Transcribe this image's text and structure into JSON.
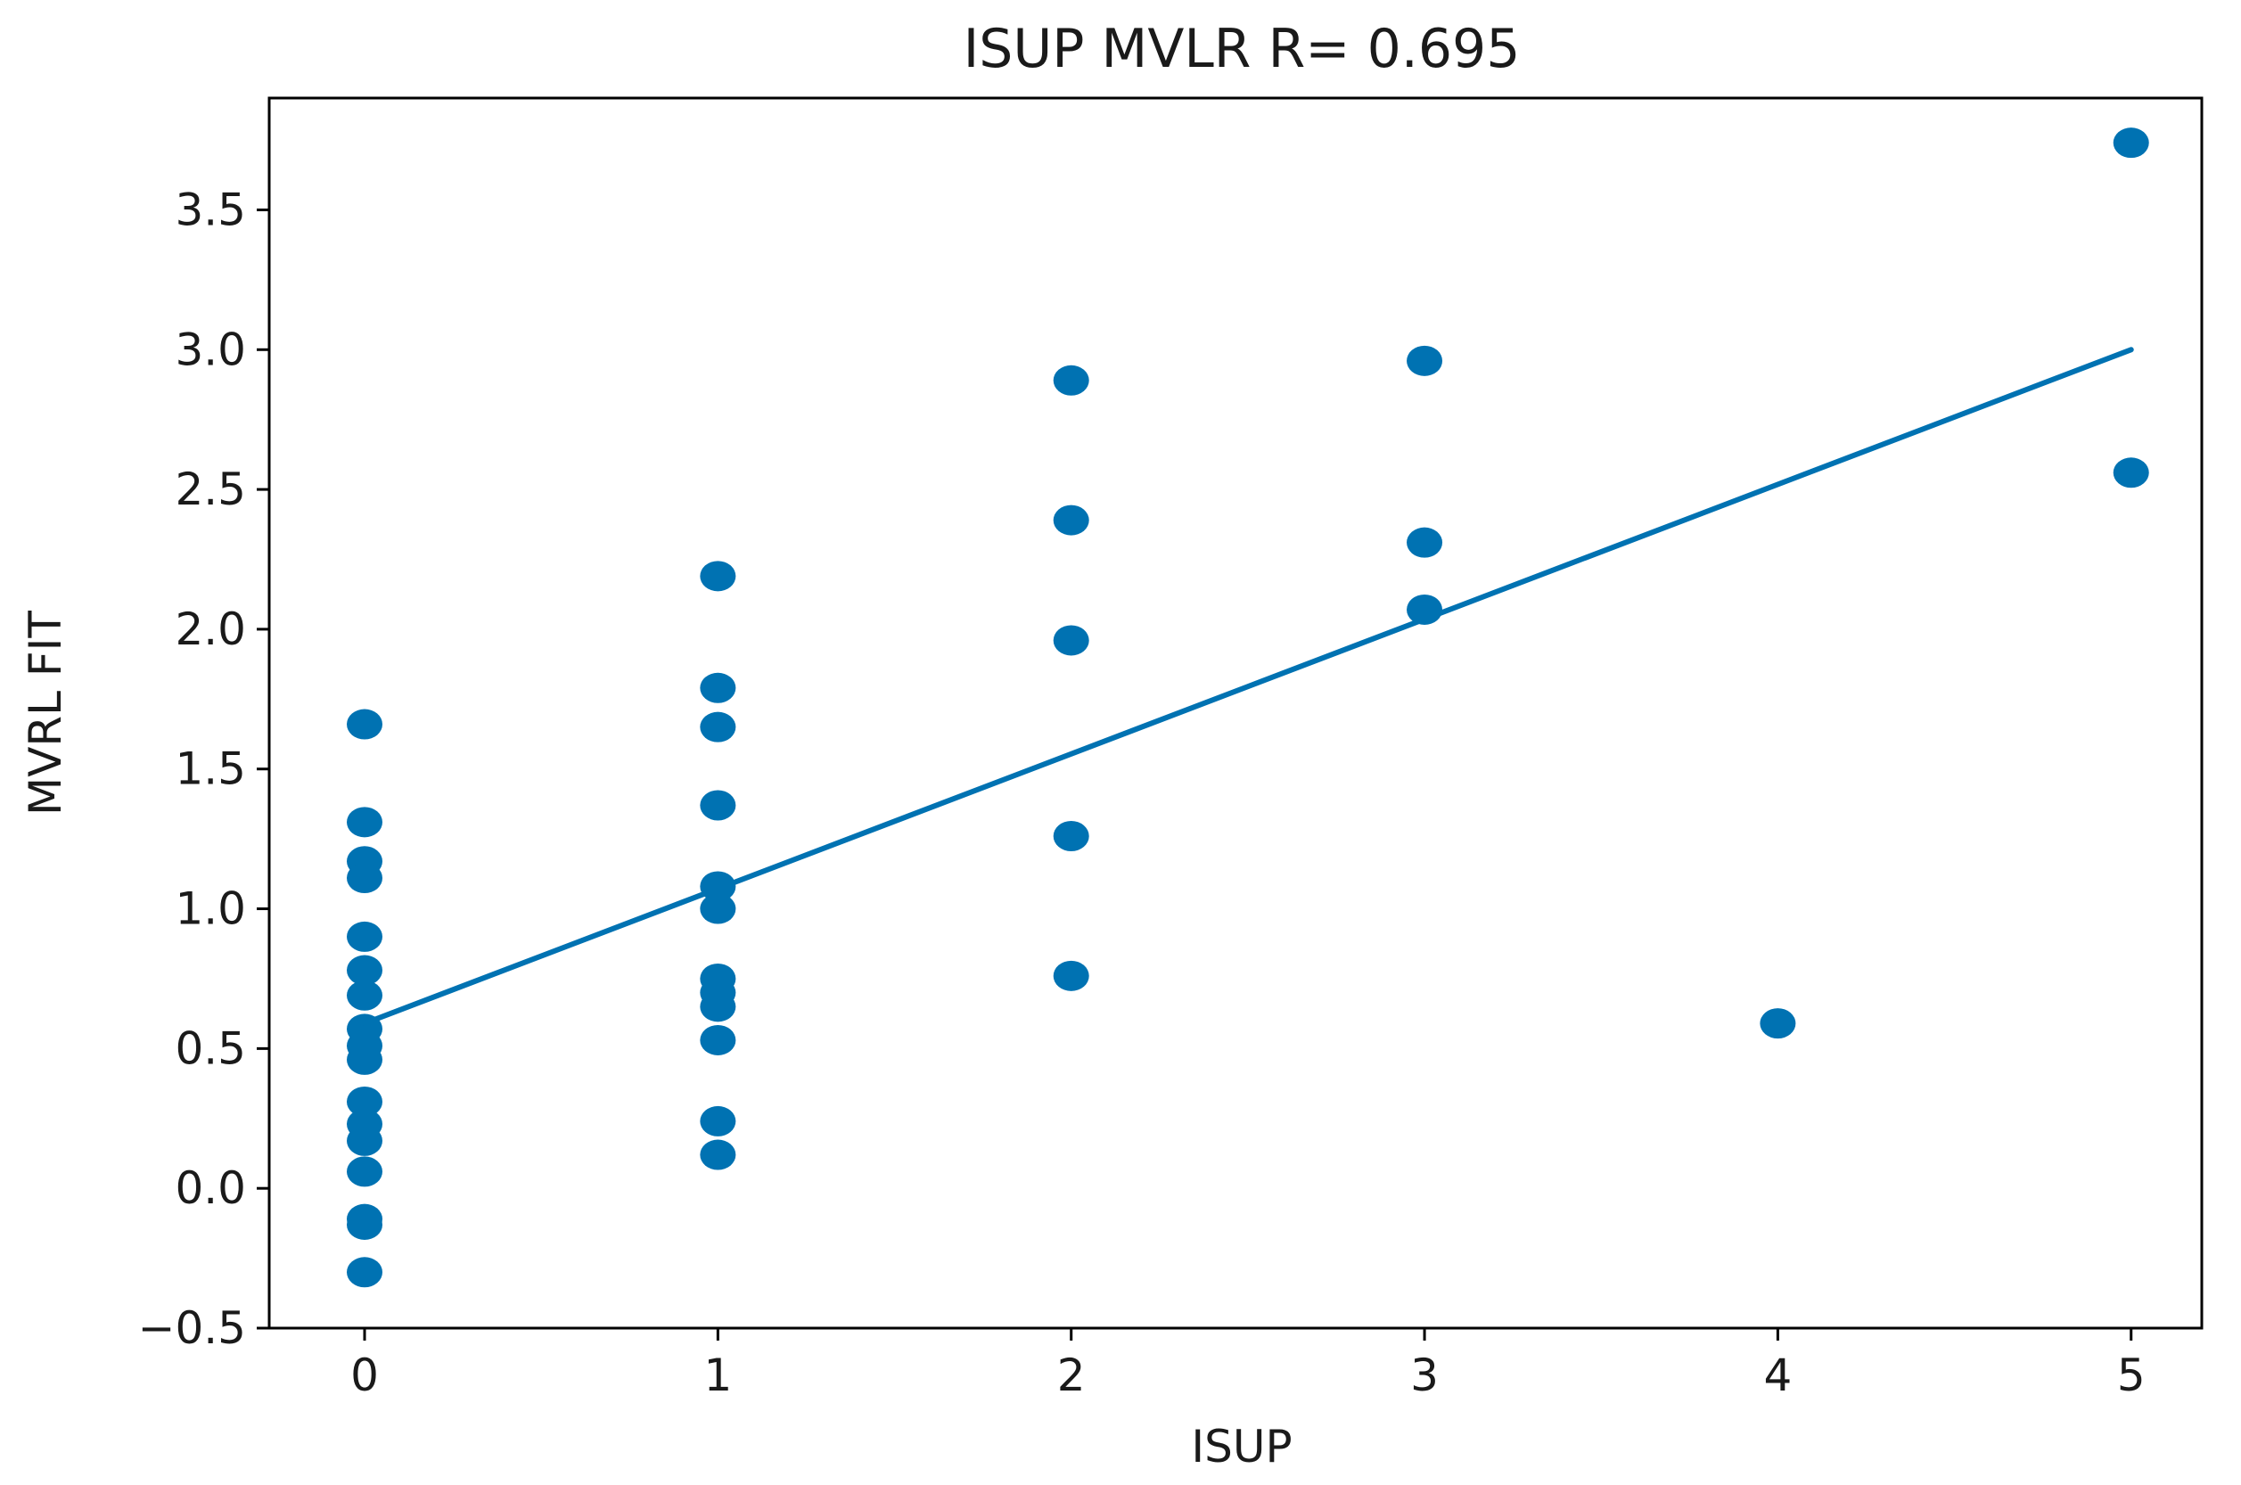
{
  "chart_data": {
    "type": "scatter",
    "title": "ISUP MVLR  R= 0.695",
    "xlabel": "ISUP",
    "ylabel": "MVRL FIT",
    "xlim": [
      -0.27,
      5.2
    ],
    "ylim": [
      -0.5,
      3.9
    ],
    "x_ticks": [
      0,
      1,
      2,
      3,
      4,
      5
    ],
    "x_tick_labels": [
      "0",
      "1",
      "2",
      "3",
      "4",
      "5"
    ],
    "y_ticks": [
      -0.5,
      0.0,
      0.5,
      1.0,
      1.5,
      2.0,
      2.5,
      3.0,
      3.5
    ],
    "y_tick_labels": [
      "−0.5",
      "0.0",
      "0.5",
      "1.0",
      "1.5",
      "2.0",
      "2.5",
      "3.0",
      "3.5"
    ],
    "grid": false,
    "legend": "none",
    "color": "#0072B2",
    "series": [
      {
        "kind": "scatter",
        "points": [
          {
            "x": 0,
            "y": 1.66
          },
          {
            "x": 0,
            "y": 1.31
          },
          {
            "x": 0,
            "y": 1.17
          },
          {
            "x": 0,
            "y": 1.11
          },
          {
            "x": 0,
            "y": 0.9
          },
          {
            "x": 0,
            "y": 0.78
          },
          {
            "x": 0,
            "y": 0.69
          },
          {
            "x": 0,
            "y": 0.57
          },
          {
            "x": 0,
            "y": 0.51
          },
          {
            "x": 0,
            "y": 0.46
          },
          {
            "x": 0,
            "y": 0.31
          },
          {
            "x": 0,
            "y": 0.23
          },
          {
            "x": 0,
            "y": 0.17
          },
          {
            "x": 0,
            "y": 0.06
          },
          {
            "x": 0,
            "y": -0.11
          },
          {
            "x": 0,
            "y": -0.13
          },
          {
            "x": 0,
            "y": -0.3
          },
          {
            "x": 1,
            "y": 2.19
          },
          {
            "x": 1,
            "y": 1.79
          },
          {
            "x": 1,
            "y": 1.65
          },
          {
            "x": 1,
            "y": 1.37
          },
          {
            "x": 1,
            "y": 1.08
          },
          {
            "x": 1,
            "y": 1.0
          },
          {
            "x": 1,
            "y": 0.75
          },
          {
            "x": 1,
            "y": 0.7
          },
          {
            "x": 1,
            "y": 0.65
          },
          {
            "x": 1,
            "y": 0.53
          },
          {
            "x": 1,
            "y": 0.24
          },
          {
            "x": 1,
            "y": 0.12
          },
          {
            "x": 2,
            "y": 2.89
          },
          {
            "x": 2,
            "y": 2.39
          },
          {
            "x": 2,
            "y": 1.96
          },
          {
            "x": 2,
            "y": 1.26
          },
          {
            "x": 2,
            "y": 0.76
          },
          {
            "x": 3,
            "y": 2.96
          },
          {
            "x": 3,
            "y": 2.31
          },
          {
            "x": 3,
            "y": 2.07
          },
          {
            "x": 4,
            "y": 0.59
          },
          {
            "x": 5,
            "y": 3.74
          },
          {
            "x": 5,
            "y": 2.56
          }
        ]
      },
      {
        "kind": "line",
        "points": [
          {
            "x": 0,
            "y": 0.59
          },
          {
            "x": 5,
            "y": 3.0
          }
        ]
      }
    ]
  }
}
